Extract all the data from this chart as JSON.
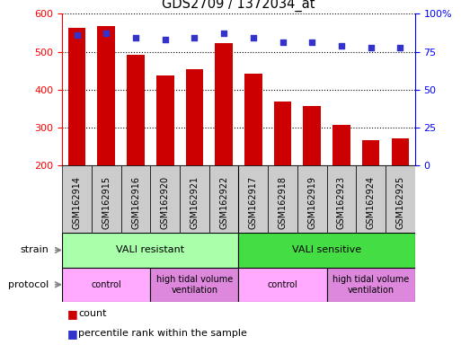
{
  "title": "GDS2709 / 1372034_at",
  "samples": [
    "GSM162914",
    "GSM162915",
    "GSM162916",
    "GSM162920",
    "GSM162921",
    "GSM162922",
    "GSM162917",
    "GSM162918",
    "GSM162919",
    "GSM162923",
    "GSM162924",
    "GSM162925"
  ],
  "counts": [
    563,
    568,
    492,
    437,
    453,
    522,
    443,
    370,
    356,
    308,
    268,
    272
  ],
  "percentiles": [
    86,
    87,
    84,
    83,
    84,
    87,
    84,
    81,
    81,
    79,
    78,
    78
  ],
  "ylim_left": [
    200,
    600
  ],
  "ylim_right": [
    0,
    100
  ],
  "yticks_left": [
    200,
    300,
    400,
    500,
    600
  ],
  "yticks_right": [
    0,
    25,
    50,
    75,
    100
  ],
  "bar_color": "#cc0000",
  "dot_color": "#3333cc",
  "bar_bottom": 200,
  "bar_width": 0.6,
  "strain_groups": [
    {
      "label": "VALI resistant",
      "start": 0,
      "end": 6,
      "color": "#aaffaa"
    },
    {
      "label": "VALI sensitive",
      "start": 6,
      "end": 12,
      "color": "#44dd44"
    }
  ],
  "protocol_groups": [
    {
      "label": "control",
      "start": 0,
      "end": 3,
      "color": "#ffaaff"
    },
    {
      "label": "high tidal volume\nventilation",
      "start": 3,
      "end": 6,
      "color": "#dd88dd"
    },
    {
      "label": "control",
      "start": 6,
      "end": 9,
      "color": "#ffaaff"
    },
    {
      "label": "high tidal volume\nventilation",
      "start": 9,
      "end": 12,
      "color": "#dd88dd"
    }
  ],
  "sample_box_color": "#cccccc",
  "legend_count_label": "count",
  "legend_pct_label": "percentile rank within the sample"
}
